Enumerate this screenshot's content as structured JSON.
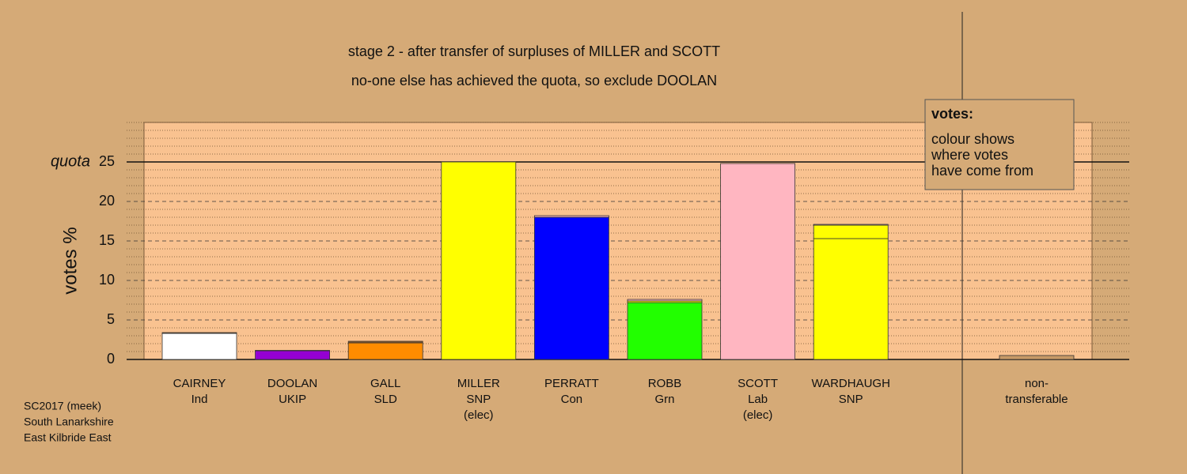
{
  "chart_data": {
    "type": "stacked-bar",
    "title": "stage 2 - after transfer of surpluses of MILLER and SCOTT",
    "subtitle": "no-one else has achieved the quota, so exclude DOOLAN",
    "y_label": "votes %",
    "ylim": [
      0,
      30
    ],
    "yticks": [
      0,
      5,
      10,
      15,
      20,
      25
    ],
    "minor_yticks": [
      1,
      2,
      3,
      4,
      6,
      7,
      8,
      9,
      11,
      12,
      13,
      14,
      16,
      17,
      18,
      19,
      21,
      22,
      23,
      24,
      26,
      27,
      28,
      29,
      30
    ],
    "quota": {
      "label": "quota",
      "value": 25
    },
    "bars": [
      {
        "label": [
          "CAIRNEY",
          "Ind"
        ],
        "segments": [
          {
            "color": "#ffffff",
            "value": 3.3
          },
          {
            "color": "#8b5a2b",
            "value": 0.1
          }
        ]
      },
      {
        "label": [
          "DOOLAN",
          "UKIP"
        ],
        "segments": [
          {
            "color": "#9400d3",
            "value": 1.1
          },
          {
            "color": "#8b5a2b",
            "value": 0.05
          }
        ]
      },
      {
        "label": [
          "GALL",
          "SLD"
        ],
        "segments": [
          {
            "color": "#ff8c00",
            "value": 2.1
          },
          {
            "color": "#8b5a2b",
            "value": 0.2
          }
        ]
      },
      {
        "label": [
          "MILLER",
          "SNP",
          "(elec)"
        ],
        "segments": [
          {
            "color": "#ffff00",
            "value": 25
          }
        ]
      },
      {
        "label": [
          "PERRATT",
          "Con"
        ],
        "segments": [
          {
            "color": "#0000ff",
            "value": 18
          },
          {
            "color": "#ffb6c1",
            "value": 0.2
          }
        ]
      },
      {
        "label": [
          "ROBB",
          "Grn"
        ],
        "segments": [
          {
            "color": "#22ff00",
            "value": 7.2
          },
          {
            "color": "#ffff00",
            "value": 0.2
          },
          {
            "color": "#ffb6c1",
            "value": 0.2
          }
        ]
      },
      {
        "label": [
          "SCOTT",
          "Lab",
          "(elec)"
        ],
        "segments": [
          {
            "color": "#ffb6c1",
            "value": 24.8
          }
        ]
      },
      {
        "label": [
          "WARDHAUGH",
          "SNP"
        ],
        "segments": [
          {
            "color": "#ffff00",
            "value": 15.3
          },
          {
            "color": "#ffff00",
            "value": 1.7
          },
          {
            "color": "#ffb6c1",
            "value": 0.1
          }
        ]
      }
    ],
    "nontransferable": {
      "label": [
        "non-",
        "transferable"
      ],
      "segments": [
        {
          "color": "#c79a66",
          "value": 0.5
        }
      ]
    },
    "legend": {
      "title": "votes:",
      "lines": [
        "colour shows",
        "where votes",
        "have come from"
      ]
    },
    "footnote": [
      "SC2017 (meek)",
      "South Lanarkshire",
      "East Kilbride East"
    ]
  }
}
